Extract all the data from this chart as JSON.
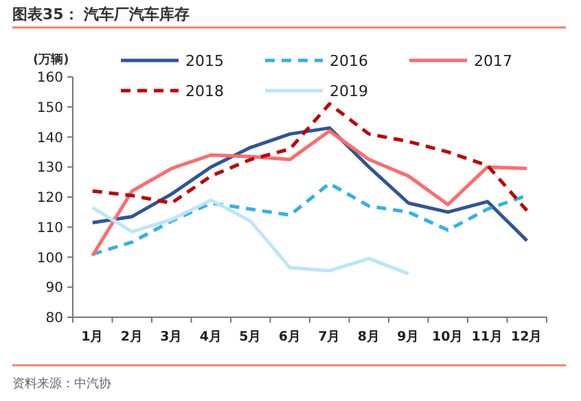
{
  "chart_data": {
    "type": "line",
    "title": "图表35：  汽车厂汽车库存",
    "ylabel": "(万辆)",
    "annotations": [
      "资料来源：中汽协"
    ],
    "categories": [
      "1月",
      "2月",
      "3月",
      "4月",
      "5月",
      "6月",
      "7月",
      "8月",
      "9月",
      "10月",
      "11月",
      "12月"
    ],
    "series": [
      {
        "name": "2015",
        "color": "#2f5597",
        "line_style": "solid",
        "values": [
          111.5,
          113.5,
          121,
          130,
          136.5,
          141,
          143,
          130,
          118,
          115,
          118.5,
          105.5
        ]
      },
      {
        "name": "2016",
        "color": "#33b0ea",
        "line_style": "dashed",
        "values": [
          101,
          105,
          112,
          118,
          116,
          114,
          124.5,
          117,
          115,
          109,
          116,
          120.5
        ]
      },
      {
        "name": "2017",
        "color": "#ff6b6b",
        "line_style": "solid",
        "values": [
          100.5,
          122,
          129.5,
          134,
          133.5,
          132.5,
          142,
          132.5,
          127,
          117.5,
          130,
          129.5
        ]
      },
      {
        "name": "2018",
        "color": "#c00000",
        "line_style": "dashed",
        "values": [
          122,
          120.5,
          118,
          127,
          132.5,
          136,
          151,
          141,
          138.5,
          135,
          130.5,
          115.5
        ]
      },
      {
        "name": "2019",
        "color": "#bde5f8",
        "line_style": "solid",
        "values": [
          116.5,
          108.5,
          112.5,
          119,
          112,
          96.5,
          95.5,
          99.5,
          94.5,
          null,
          null,
          null
        ]
      }
    ],
    "ylim": [
      80,
      160
    ],
    "yticks": [
      80,
      90,
      100,
      110,
      120,
      130,
      140,
      150,
      160
    ],
    "grid": false,
    "legend": "top"
  }
}
